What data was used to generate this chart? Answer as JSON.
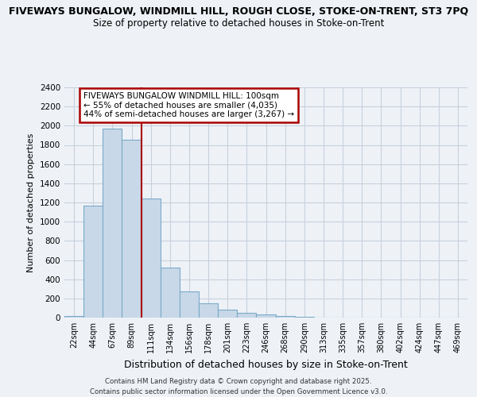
{
  "title_line1": "FIVEWAYS BUNGALOW, WINDMILL HILL, ROUGH CLOSE, STOKE-ON-TRENT, ST3 7PQ",
  "title_line2": "Size of property relative to detached houses in Stoke-on-Trent",
  "xlabel": "Distribution of detached houses by size in Stoke-on-Trent",
  "ylabel": "Number of detached properties",
  "footer_line1": "Contains HM Land Registry data © Crown copyright and database right 2025.",
  "footer_line2": "Contains public sector information licensed under the Open Government Licence v3.0.",
  "bar_labels": [
    "22sqm",
    "44sqm",
    "67sqm",
    "89sqm",
    "111sqm",
    "134sqm",
    "156sqm",
    "178sqm",
    "201sqm",
    "223sqm",
    "246sqm",
    "268sqm",
    "290sqm",
    "313sqm",
    "335sqm",
    "357sqm",
    "380sqm",
    "402sqm",
    "424sqm",
    "447sqm",
    "469sqm"
  ],
  "bar_values": [
    20,
    1170,
    1970,
    1850,
    1245,
    520,
    270,
    150,
    85,
    50,
    35,
    15,
    5,
    2,
    1,
    0,
    0,
    0,
    0,
    0,
    0
  ],
  "bar_color": "#c8d8e8",
  "bar_edge_color": "#7aaac8",
  "ylim": [
    0,
    2400
  ],
  "yticks": [
    0,
    200,
    400,
    600,
    800,
    1000,
    1200,
    1400,
    1600,
    1800,
    2000,
    2200,
    2400
  ],
  "annotation_text": "FIVEWAYS BUNGALOW WINDMILL HILL: 100sqm\n← 55% of detached houses are smaller (4,035)\n44% of semi-detached houses are larger (3,267) →",
  "annotation_box_color": "#ffffff",
  "annotation_border_color": "#aa0000",
  "vline_color": "#aa0000",
  "vline_bin": 4,
  "background_color": "#eef2f7",
  "plot_bg_color": "#eef2f7",
  "grid_color": "#c8d0dc"
}
